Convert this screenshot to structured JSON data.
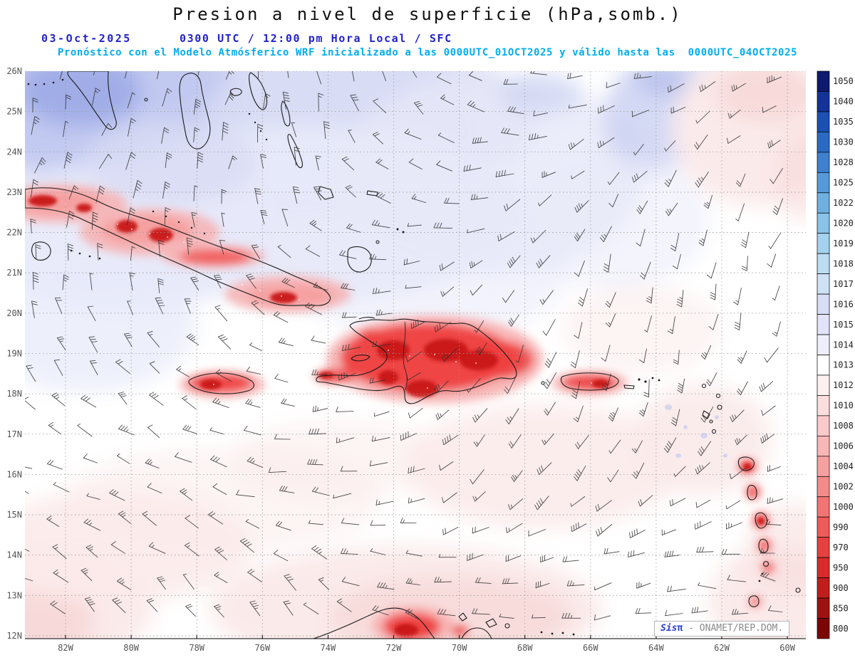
{
  "header": {
    "title": "Presion a nivel de superficie (hPa,somb.)",
    "date": "03-Oct-2025",
    "time_line": "0300 UTC / 12:00 pm Hora Local / SFC",
    "subtitle": "Pronóstico con el Modelo Atmósferico WRF inicializado a las 0000UTC_01OCT2025 y válido hasta las  0000UTC_04OCT2025"
  },
  "axes": {
    "lat": [
      "26N",
      "25N",
      "24N",
      "23N",
      "22N",
      "21N",
      "20N",
      "19N",
      "18N",
      "17N",
      "16N",
      "15N",
      "14N",
      "13N",
      "12N"
    ],
    "lon": [
      "82W",
      "80W",
      "78W",
      "76W",
      "74W",
      "72W",
      "70W",
      "68W",
      "66W",
      "64W",
      "62W",
      "60W"
    ]
  },
  "colorbar": {
    "unit": "hPa",
    "values": [
      "1050",
      "1040",
      "1035",
      "1030",
      "1028",
      "1025",
      "1022",
      "1020",
      "1019",
      "1018",
      "1017",
      "1016",
      "1015",
      "1014",
      "1013",
      "1012",
      "1010",
      "1008",
      "1006",
      "1004",
      "1002",
      "1000",
      "990",
      "970",
      "950",
      "900",
      "850",
      "800"
    ],
    "colors": [
      "#0d1a6e",
      "#13339b",
      "#1c50b5",
      "#2a6ac4",
      "#3f80cf",
      "#569ad9",
      "#6fb0e0",
      "#8ac2e8",
      "#a4d1ee",
      "#bcdcf2",
      "#cfe2f5",
      "#d8def5",
      "#e2e3f8",
      "#efeffb",
      "#ffffff",
      "#fdf0f0",
      "#fbdede",
      "#f9caca",
      "#f8b6b6",
      "#f6a1a1",
      "#f48b8b",
      "#f27474",
      "#ef5a5a",
      "#e74040",
      "#d92b2b",
      "#c01d1d",
      "#a01111",
      "#7c0606"
    ]
  },
  "watermark": {
    "brand": "Sis",
    "pi": "π",
    "rest": " - ONAMET/REP.DOM."
  },
  "colors": {
    "title": "#111111",
    "header_blue": "#2323cd",
    "subtitle_cyan": "#00aeef",
    "axis_label": "#555555",
    "colorbar_label": "#222222",
    "watermark_blue": "#2a3fd4",
    "watermark_gray": "#8a8a8a"
  },
  "palette": {
    "lavender": "#d8dbf4",
    "lavender_light": "#e7e9f9",
    "periwinkle": "#c2c9f0",
    "blue_patch": "#9fabe6",
    "pink_pale": "#fbeaea",
    "pink": "#f7d6d6",
    "red_halo": "#f7b0b0",
    "red": "#ee4040",
    "red_core": "#c81818",
    "red_dark": "#a81010",
    "coast": "#1a1a1a",
    "grid": "#999999",
    "barb": "#2f2f2f"
  }
}
